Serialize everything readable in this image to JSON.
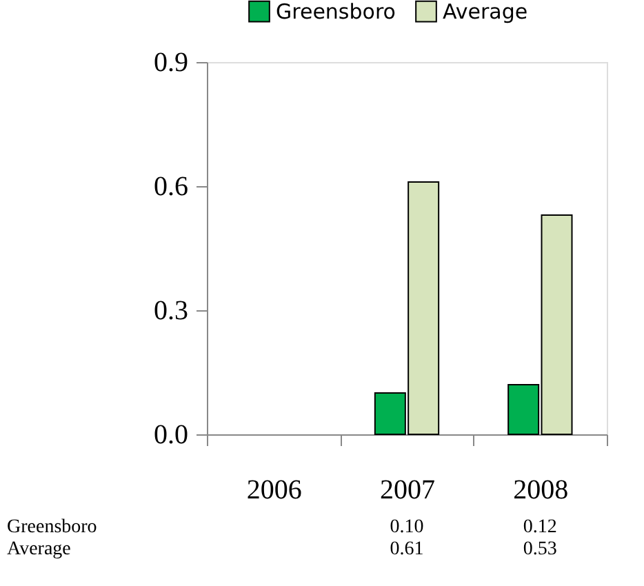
{
  "chart_data": {
    "type": "bar",
    "categories": [
      "2006",
      "2007",
      "2008"
    ],
    "series": [
      {
        "name": "Greensboro",
        "color": "#00b050",
        "values": [
          null,
          0.1,
          0.12
        ],
        "value_labels": [
          null,
          "0.10",
          "0.12"
        ]
      },
      {
        "name": "Average",
        "color": "#d7e4bc",
        "values": [
          null,
          0.61,
          0.53
        ],
        "value_labels": [
          null,
          "0.61",
          "0.53"
        ]
      }
    ],
    "ylim": [
      0,
      0.9
    ],
    "yticks": [
      {
        "value": 0,
        "label": "0.0"
      },
      {
        "value": 0.3,
        "label": "0.3"
      },
      {
        "value": 0.6,
        "label": "0.6"
      },
      {
        "value": 0.9,
        "label": "0.9"
      }
    ],
    "grid": false,
    "legend": "top"
  }
}
